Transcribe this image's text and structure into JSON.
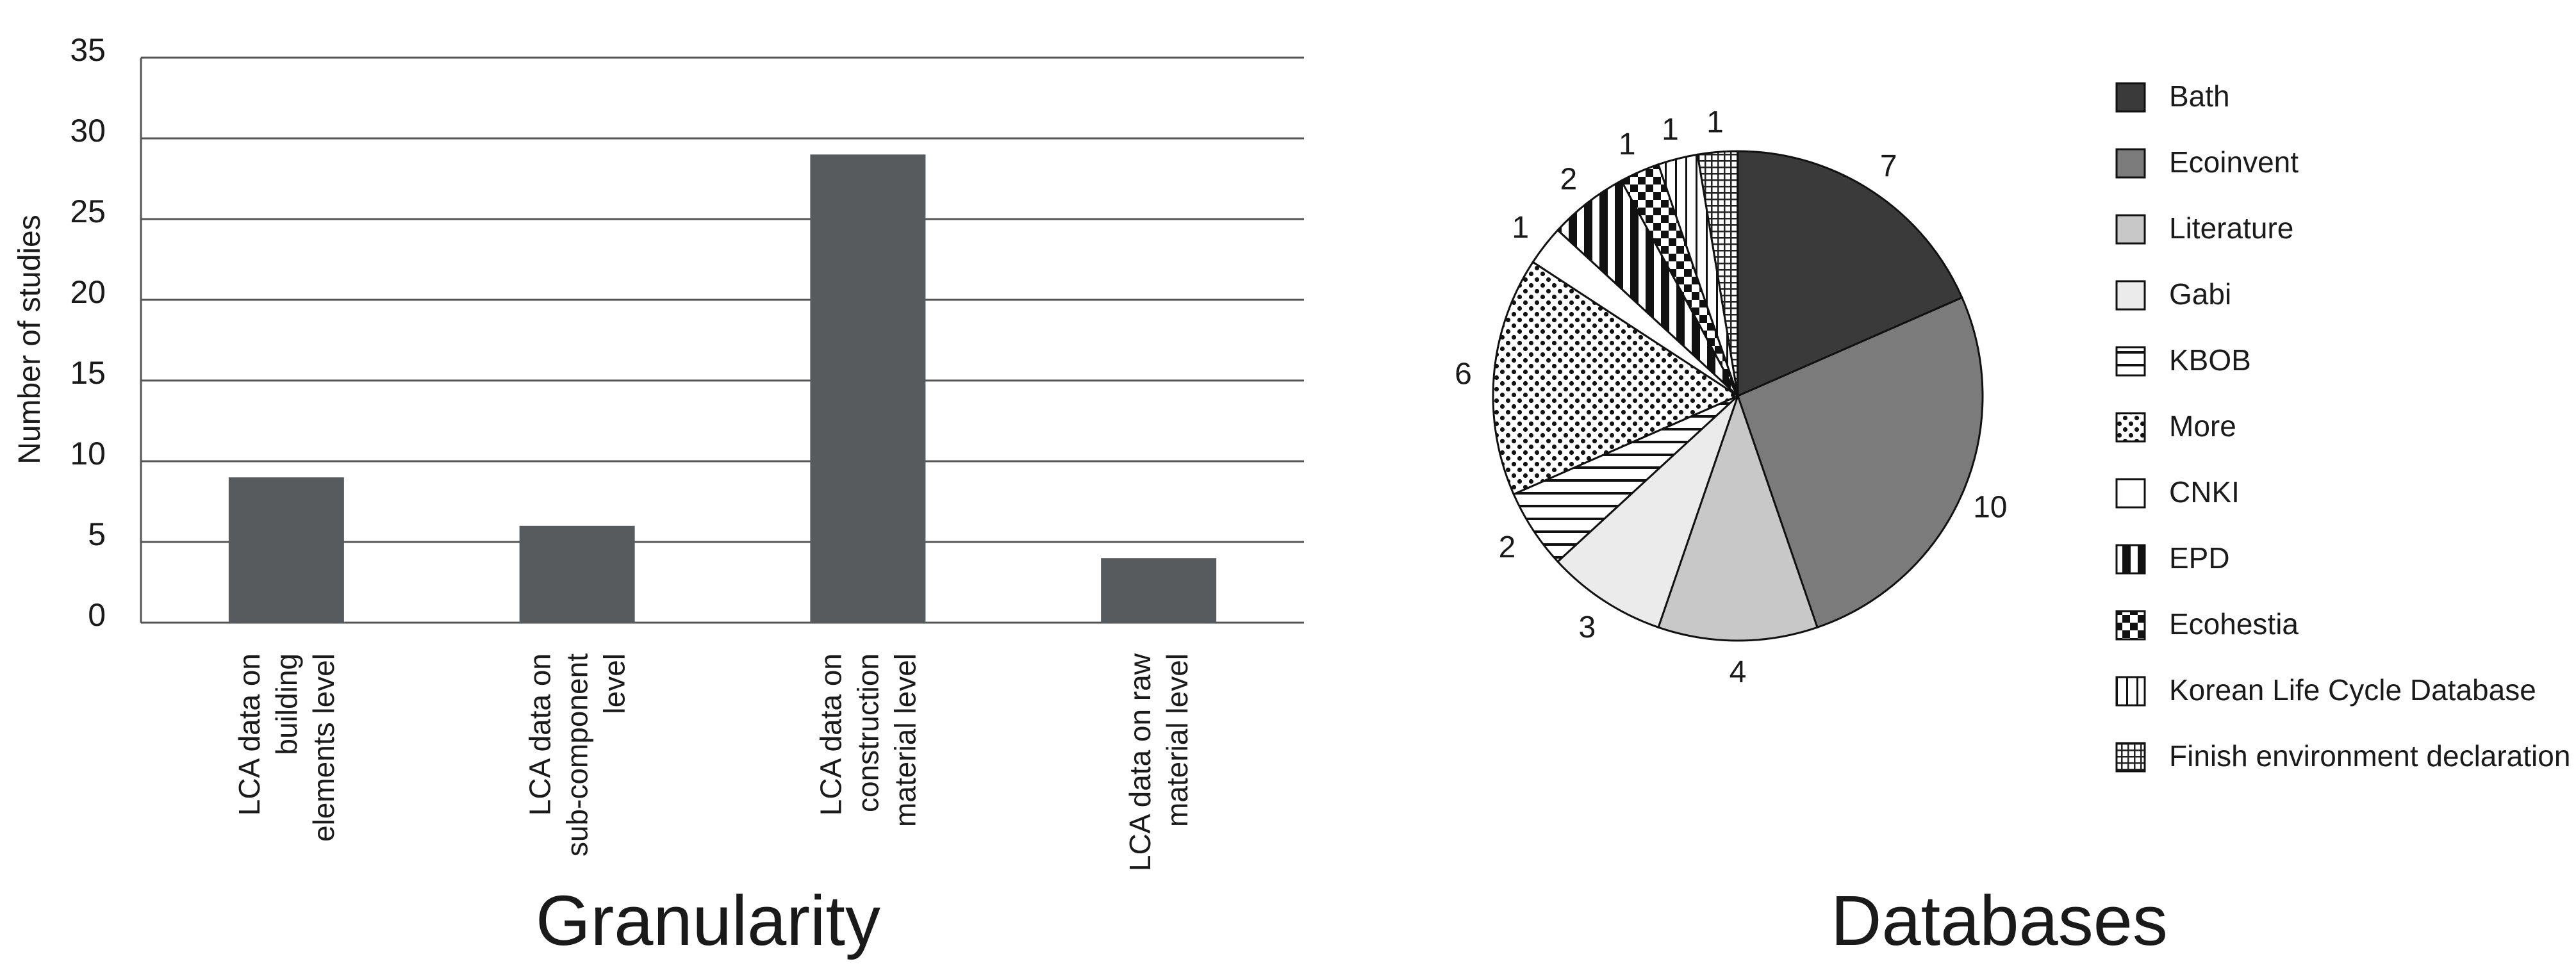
{
  "chart_data": [
    {
      "type": "bar",
      "title": "Granularity",
      "xlabel": "",
      "ylabel": "Number of studies",
      "ylim": [
        0,
        35
      ],
      "yticks": [
        "0",
        "5",
        "10",
        "15",
        "20",
        "25",
        "30",
        "35"
      ],
      "grid": true,
      "categories": [
        [
          "LCA data on",
          "building",
          "elements level"
        ],
        [
          "LCA data on",
          "sub-component",
          "level"
        ],
        [
          "LCA data on",
          "construction",
          "material level"
        ],
        [
          "LCA data on raw",
          "material level"
        ]
      ],
      "values": [
        9,
        6,
        29,
        4
      ],
      "colors": {
        "bar": "#575b5e",
        "grid": "#555555"
      }
    },
    {
      "type": "pie",
      "title": "Databases",
      "legend_position": "right",
      "slices": [
        {
          "label": "Bath",
          "value": 7,
          "display": "7",
          "fill": "#3a3a3a",
          "pattern": "solid"
        },
        {
          "label": "Ecoinvent",
          "value": 10,
          "display": "10",
          "fill": "#7b7b7b",
          "pattern": "solid"
        },
        {
          "label": "Literature",
          "value": 4,
          "display": "4",
          "fill": "#c8c8c8",
          "pattern": "solid"
        },
        {
          "label": "Gabi",
          "value": 3,
          "display": "3",
          "fill": "#ebebeb",
          "pattern": "solid"
        },
        {
          "label": "KBOB",
          "value": 2,
          "display": "2",
          "fill": "#ffffff",
          "pattern": "horizontal-lines"
        },
        {
          "label": "More",
          "value": 6,
          "display": "6",
          "fill": "#ffffff",
          "pattern": "dots"
        },
        {
          "label": "CNKI",
          "value": 1,
          "display": "1",
          "fill": "#ffffff",
          "pattern": "solid"
        },
        {
          "label": "EPD",
          "value": 2,
          "display": "2",
          "fill": "#ffffff",
          "pattern": "thick-vertical-stripes"
        },
        {
          "label": "Ecohestia",
          "value": 1,
          "display": "1",
          "fill": "#ffffff",
          "pattern": "checker"
        },
        {
          "label": "Korean Life Cycle Database",
          "value": 1,
          "display": "1",
          "fill": "#ffffff",
          "pattern": "thin-vertical-lines"
        },
        {
          "label": "Finish environment declaration",
          "value": 1,
          "display": "1",
          "fill": "#ffffff",
          "pattern": "grid"
        }
      ]
    }
  ]
}
